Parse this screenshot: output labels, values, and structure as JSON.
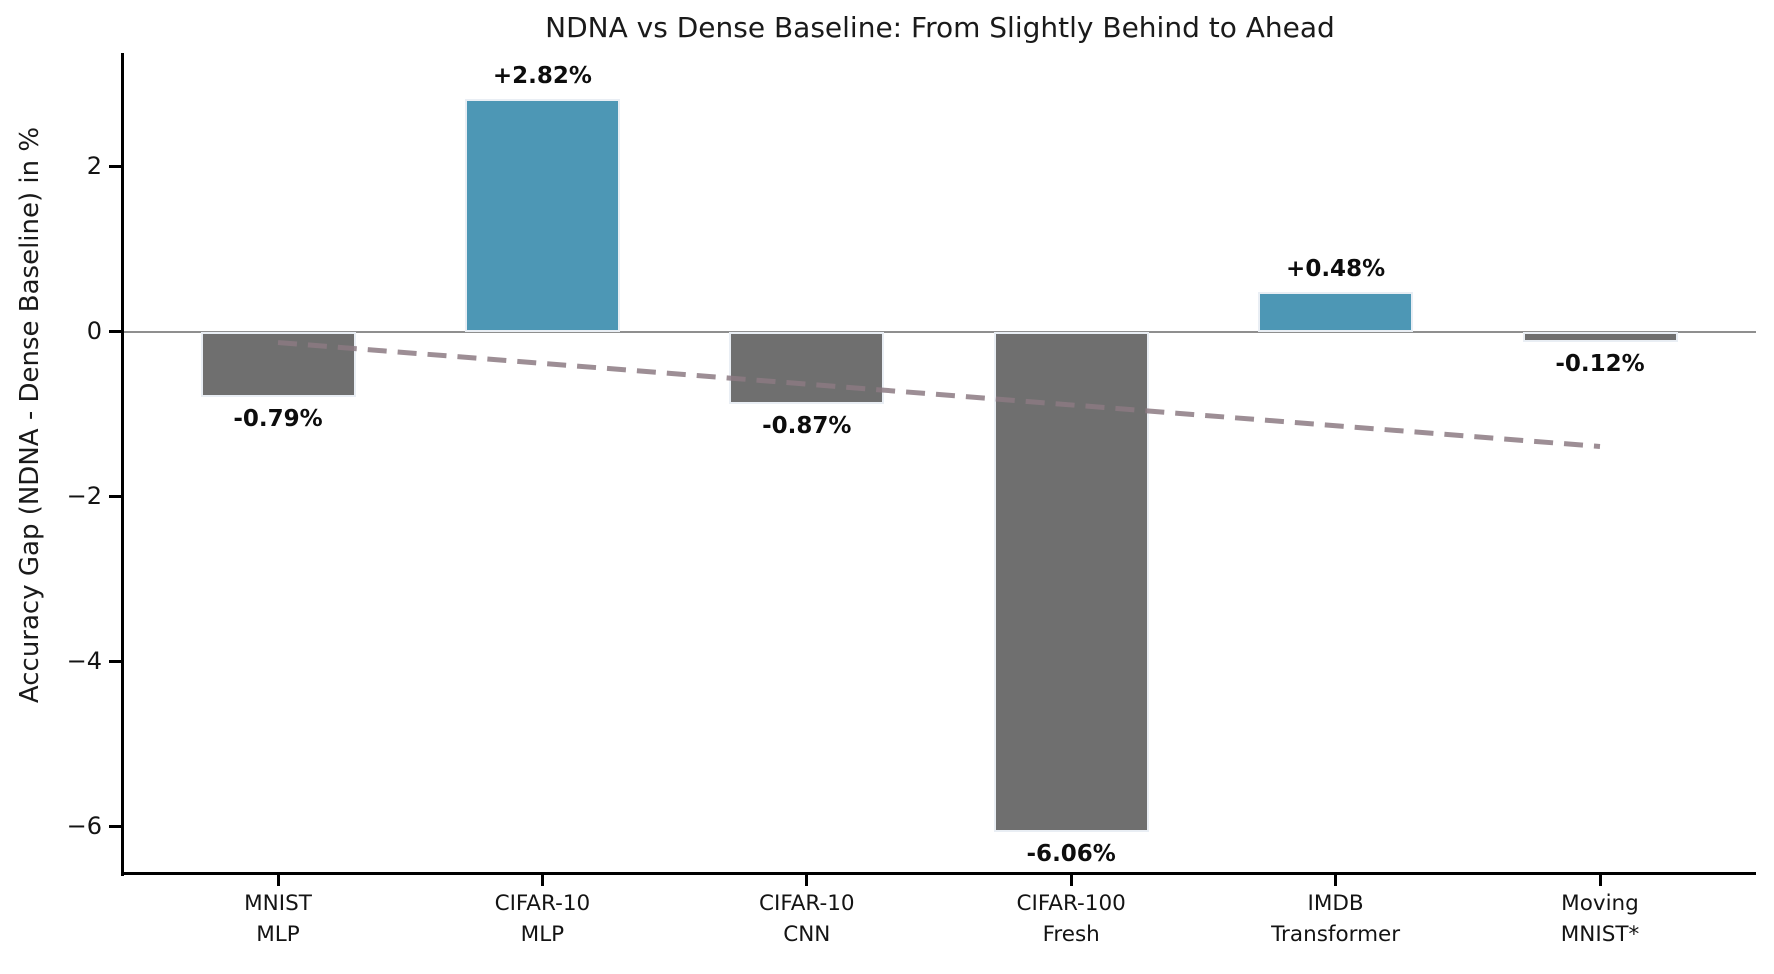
{
  "title": "NDNA vs Dense Baseline: From Slightly Behind to Ahead",
  "chart_data": {
    "type": "bar",
    "title": "NDNA vs Dense Baseline: From Slightly Behind to Ahead",
    "xlabel": "",
    "ylabel": "Accuracy Gap (NDNA - Dense Baseline) in %",
    "categories": [
      [
        "MNIST",
        "MLP"
      ],
      [
        "CIFAR-10",
        "MLP"
      ],
      [
        "CIFAR-10",
        "CNN"
      ],
      [
        "CIFAR-100",
        "Fresh"
      ],
      [
        "IMDB",
        "Transformer"
      ],
      [
        "Moving",
        "MNIST*"
      ]
    ],
    "values": [
      -0.79,
      2.82,
      -0.87,
      -6.06,
      0.48,
      -0.12
    ],
    "bar_labels": [
      "-0.79%",
      "+2.82%",
      "-0.87%",
      "-6.06%",
      "+0.48%",
      "-0.12%"
    ],
    "positive_color": "#4d97b5",
    "negative_color": "#6f6f6f",
    "bar_edge_color": "#e9eef4",
    "ylim": [
      -6.56,
      3.38
    ],
    "yticks": [
      2,
      0,
      -2,
      -4,
      -6
    ],
    "ytick_labels": [
      "2",
      "0",
      "−2",
      "−4",
      "−6"
    ],
    "grid": false,
    "legend": null,
    "zero_line_color": "#8f8f8f",
    "trend_line": {
      "style": "dashed",
      "color": "#8c7a82",
      "opacity": 0.85,
      "start_category_index": 0,
      "end_category_index": 5,
      "start_value": -0.13,
      "end_value": -1.39
    }
  }
}
